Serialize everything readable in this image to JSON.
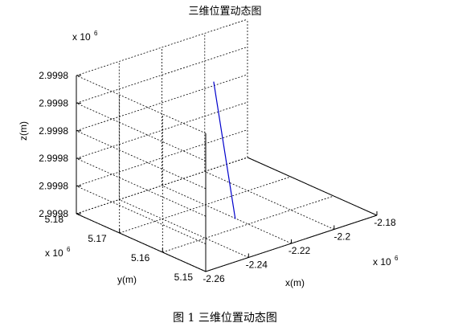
{
  "chart_data": {
    "type": "line",
    "title": "三维位置动态图",
    "caption": "图 1  三维位置动态图",
    "xlabel": "x(m)",
    "ylabel": "y(m)",
    "zlabel": "z(m)",
    "x_exponent": "x 10",
    "y_exponent": "x 10",
    "z_exponent": "x 10",
    "exponent_power": "6",
    "x_ticks": [
      "-2.26",
      "-2.24",
      "-2.22",
      "-2.2",
      "-2.18"
    ],
    "y_ticks": [
      "5.15",
      "5.16",
      "5.17",
      "5.18"
    ],
    "z_ticks": [
      "2.9998",
      "2.9998",
      "2.9998",
      "2.9998",
      "2.9998",
      "2.9998"
    ],
    "xlim": [
      -2.26,
      -2.18
    ],
    "ylim": [
      5.15,
      5.18
    ],
    "zlim": [
      0,
      5
    ],
    "grid": true,
    "series": [
      {
        "color": "#0000cc",
        "x": [
          -2.222,
          -2.22
        ],
        "y": [
          5.162,
          5.168
        ],
        "z": [
          0.1,
          4.6
        ]
      }
    ]
  }
}
